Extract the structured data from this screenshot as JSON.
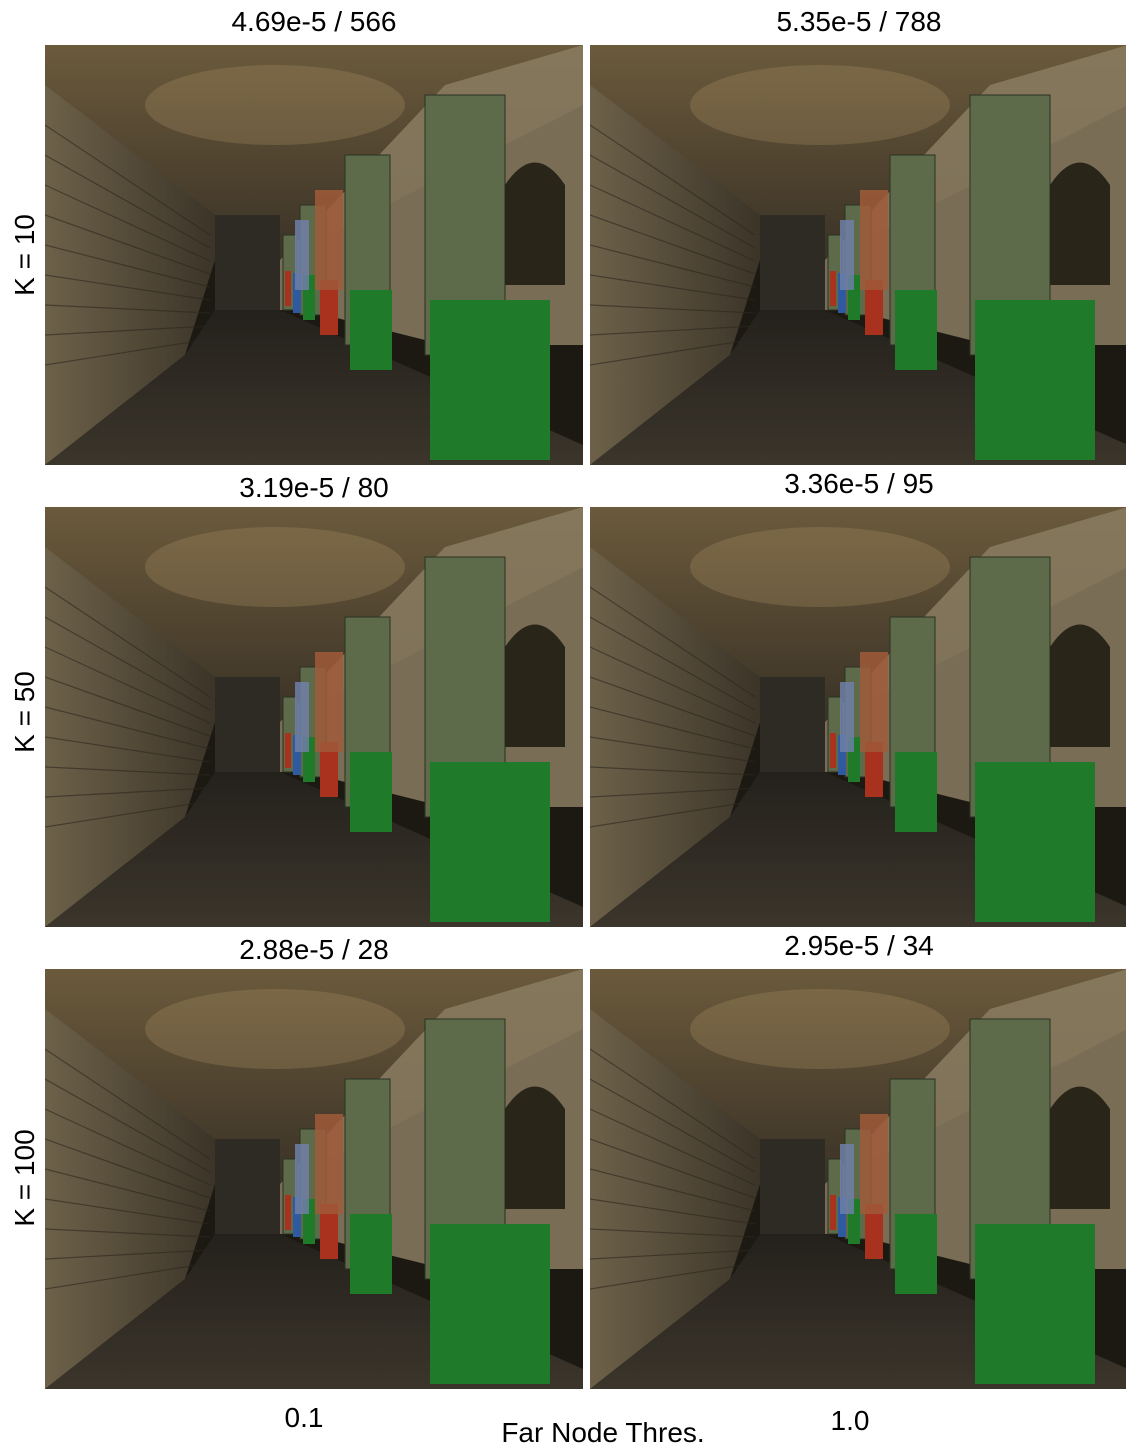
{
  "columns": [
    "0.1",
    "1.0"
  ],
  "x_axis_label": "Far Node Thres.",
  "rows": [
    {
      "label": "K = 10",
      "captions": [
        "4.69e-5 / 566",
        "5.35e-5 / 788"
      ]
    },
    {
      "label": "K = 50",
      "captions": [
        "3.19e-5 / 80",
        "3.36e-5 / 95"
      ]
    },
    {
      "label": "K = 100",
      "captions": [
        "2.88e-5 / 28",
        "2.95e-5 / 34"
      ]
    }
  ],
  "scene": {
    "colors": {
      "ceiling": "#6b5a3c",
      "left_wall": "#5a4f3e",
      "floor": "#2a2620",
      "back_wall": "#2e2a24",
      "pillar": "#5d6b4a",
      "right_wall": "#8a7c62",
      "banner_green": "#1f7a2a",
      "banner_red": "#a8321e",
      "banner_blue": "#2f5aa0",
      "banner_orange": "#c65a1c"
    }
  }
}
